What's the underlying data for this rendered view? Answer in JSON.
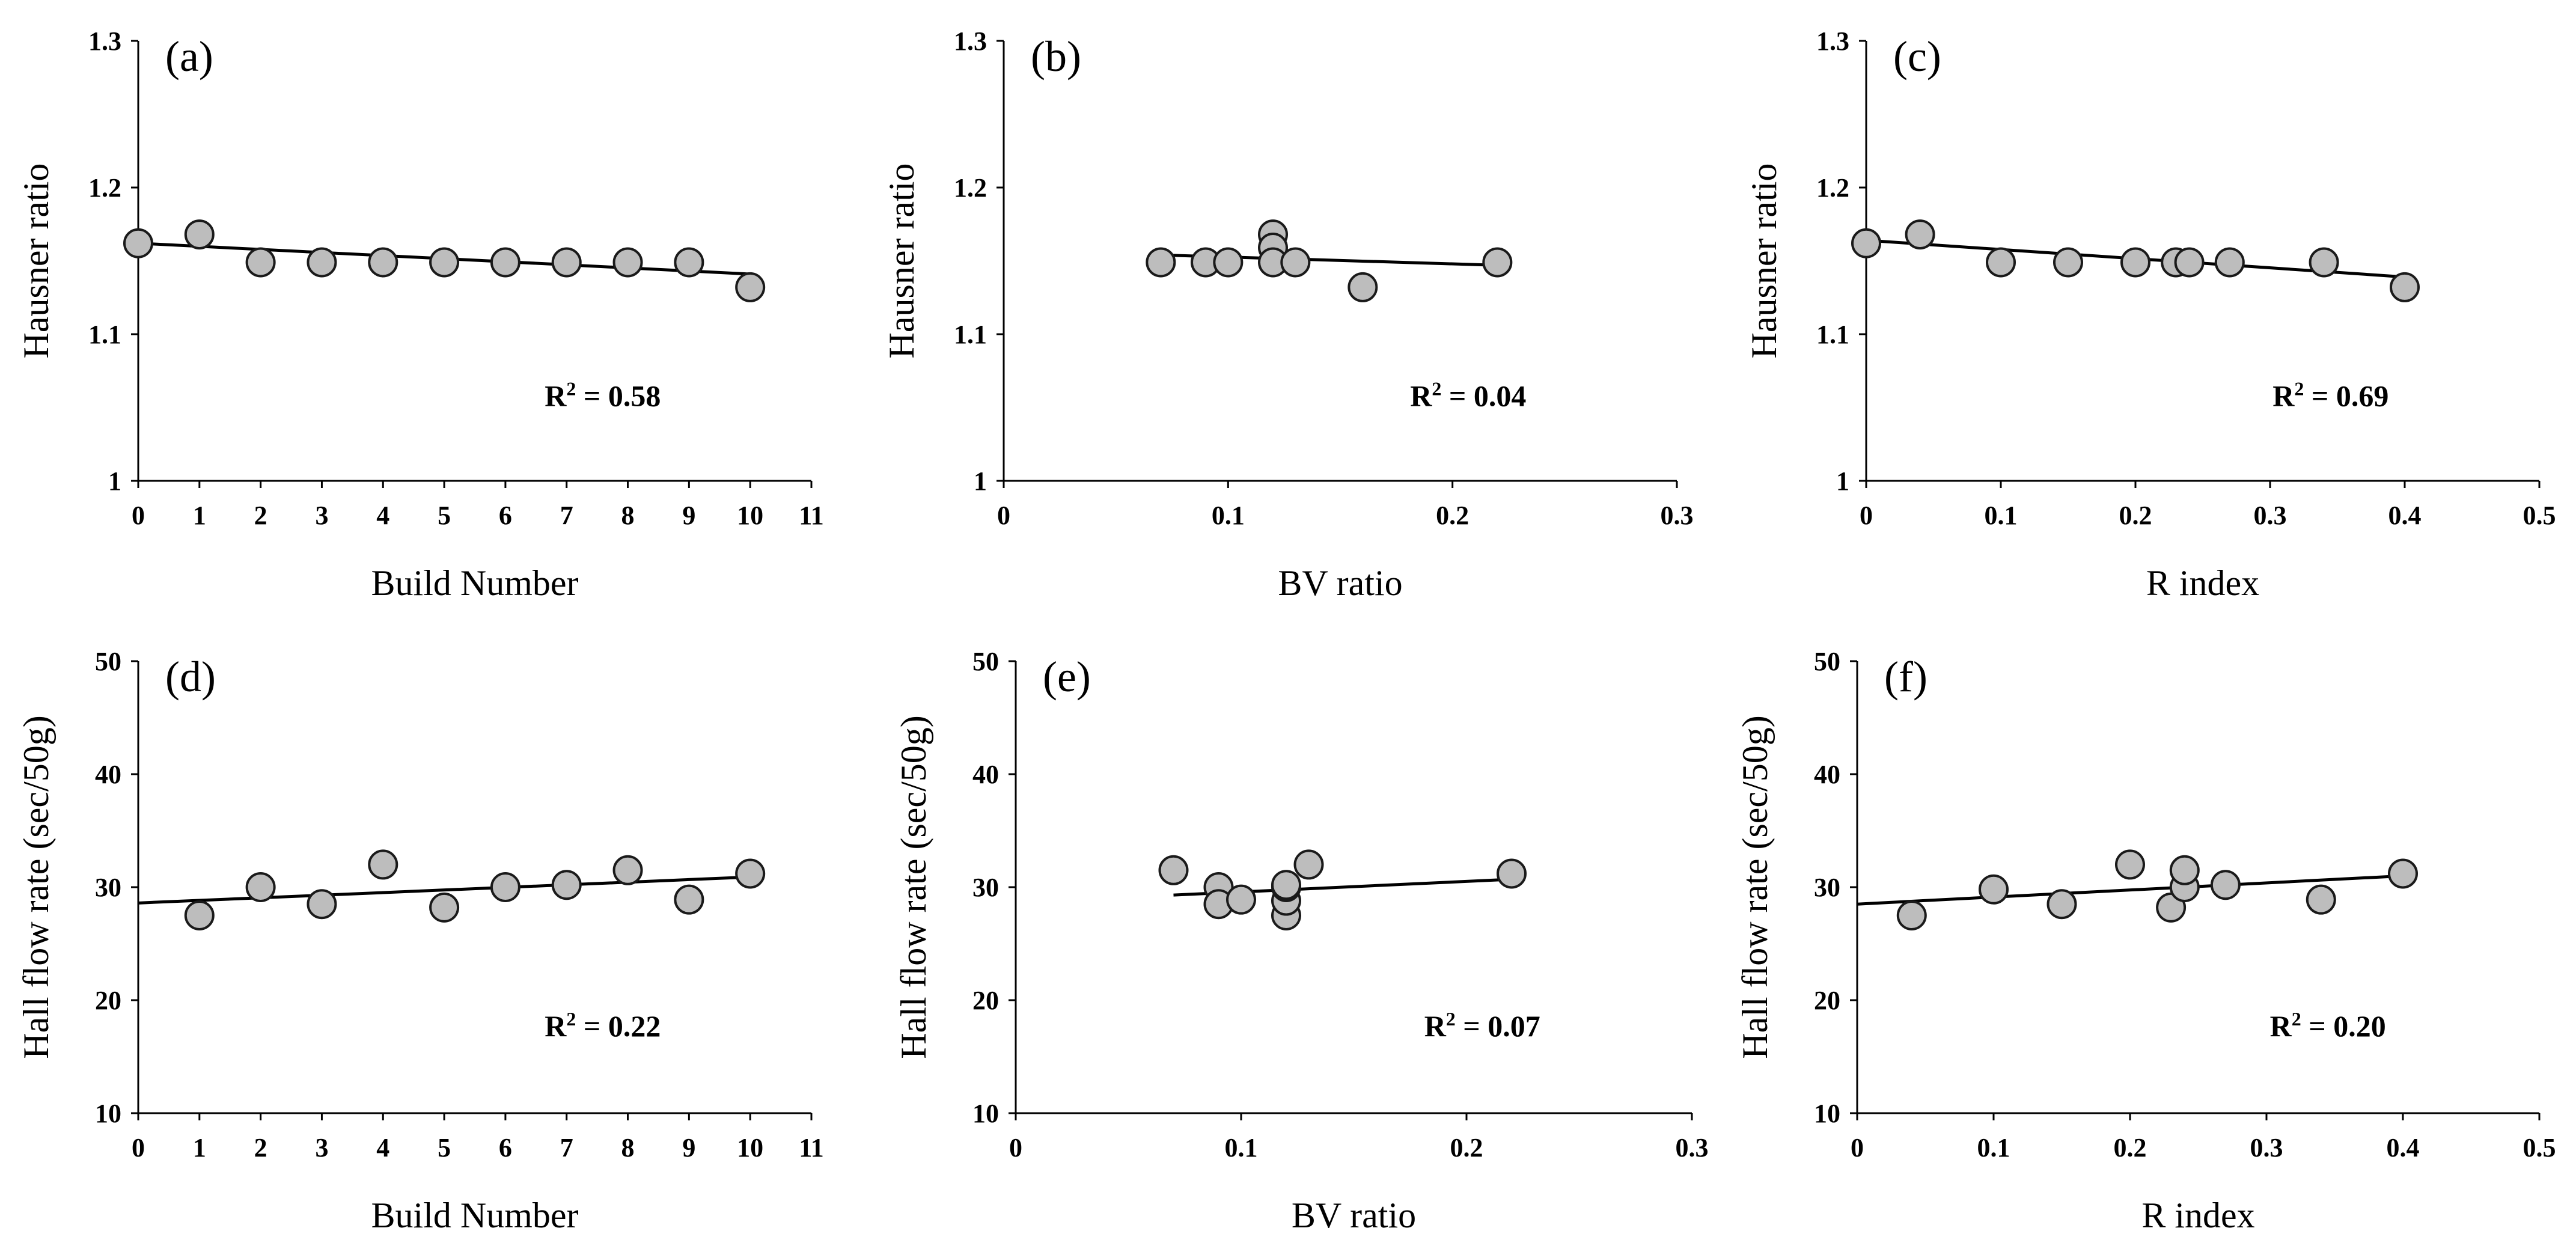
{
  "chart_data": [
    {
      "id": "a",
      "type": "scatter",
      "panel_label": "(a)",
      "xlabel": "Build Number",
      "ylabel": "Hausner ratio",
      "xlim": [
        0,
        11
      ],
      "ylim": [
        1,
        1.3
      ],
      "xticks": [
        0,
        1,
        2,
        3,
        4,
        5,
        6,
        7,
        8,
        9,
        10,
        11
      ],
      "yticks": [
        1,
        1.1,
        1.2,
        1.3
      ],
      "xtick_labels": [
        "0",
        "1",
        "2",
        "3",
        "4",
        "5",
        "6",
        "7",
        "8",
        "9",
        "10",
        "11"
      ],
      "ytick_labels": [
        "1",
        "1.1",
        "1.2",
        "1.3"
      ],
      "r2_prefix": "R",
      "r2_sup": "2",
      "r2_value": " = 0.58",
      "points": [
        {
          "x": 0,
          "y": 1.162
        },
        {
          "x": 1,
          "y": 1.168
        },
        {
          "x": 2,
          "y": 1.149
        },
        {
          "x": 3,
          "y": 1.149
        },
        {
          "x": 4,
          "y": 1.149
        },
        {
          "x": 5,
          "y": 1.149
        },
        {
          "x": 6,
          "y": 1.149
        },
        {
          "x": 7,
          "y": 1.149
        },
        {
          "x": 8,
          "y": 1.149
        },
        {
          "x": 9,
          "y": 1.149
        },
        {
          "x": 10,
          "y": 1.132
        }
      ],
      "trendline": {
        "x": [
          0,
          10
        ],
        "y": [
          1.162,
          1.141
        ]
      },
      "grid": false
    },
    {
      "id": "b",
      "type": "scatter",
      "panel_label": "(b)",
      "xlabel": "BV ratio",
      "ylabel": "Hausner ratio",
      "xlim": [
        0,
        0.3
      ],
      "ylim": [
        1,
        1.3
      ],
      "xticks": [
        0,
        0.1,
        0.2,
        0.3
      ],
      "yticks": [
        1,
        1.1,
        1.2,
        1.3
      ],
      "xtick_labels": [
        "0",
        "0.1",
        "0.2",
        "0.3"
      ],
      "ytick_labels": [
        "1",
        "1.1",
        "1.2",
        "1.3"
      ],
      "r2_prefix": "R",
      "r2_sup": "2",
      "r2_value": " = 0.04",
      "points": [
        {
          "x": 0.07,
          "y": 1.149
        },
        {
          "x": 0.09,
          "y": 1.149
        },
        {
          "x": 0.1,
          "y": 1.149
        },
        {
          "x": 0.12,
          "y": 1.168
        },
        {
          "x": 0.12,
          "y": 1.159
        },
        {
          "x": 0.12,
          "y": 1.149
        },
        {
          "x": 0.13,
          "y": 1.149
        },
        {
          "x": 0.16,
          "y": 1.132
        },
        {
          "x": 0.22,
          "y": 1.149
        }
      ],
      "trendline": {
        "x": [
          0.07,
          0.22
        ],
        "y": [
          1.154,
          1.147
        ]
      },
      "grid": false
    },
    {
      "id": "c",
      "type": "scatter",
      "panel_label": "(c)",
      "xlabel": "R index",
      "ylabel": "Hausner ratio",
      "xlim": [
        0,
        0.5
      ],
      "ylim": [
        1,
        1.3
      ],
      "xticks": [
        0,
        0.1,
        0.2,
        0.3,
        0.4,
        0.5
      ],
      "yticks": [
        1,
        1.1,
        1.2,
        1.3
      ],
      "xtick_labels": [
        "0",
        "0.1",
        "0.2",
        "0.3",
        "0.4",
        "0.5"
      ],
      "ytick_labels": [
        "1",
        "1.1",
        "1.2",
        "1.3"
      ],
      "r2_prefix": "R",
      "r2_sup": "2",
      "r2_value": " = 0.69",
      "points": [
        {
          "x": 0,
          "y": 1.162
        },
        {
          "x": 0.04,
          "y": 1.168
        },
        {
          "x": 0.1,
          "y": 1.149
        },
        {
          "x": 0.15,
          "y": 1.149
        },
        {
          "x": 0.2,
          "y": 1.149
        },
        {
          "x": 0.23,
          "y": 1.149
        },
        {
          "x": 0.24,
          "y": 1.149
        },
        {
          "x": 0.27,
          "y": 1.149
        },
        {
          "x": 0.34,
          "y": 1.149
        },
        {
          "x": 0.4,
          "y": 1.132
        }
      ],
      "trendline": {
        "x": [
          0,
          0.4
        ],
        "y": [
          1.164,
          1.139
        ]
      },
      "grid": false
    },
    {
      "id": "d",
      "type": "scatter",
      "panel_label": "(d)",
      "xlabel": "Build Number",
      "ylabel": "Hall flow rate (sec/50g)",
      "xlim": [
        0,
        11
      ],
      "ylim": [
        10,
        50
      ],
      "xticks": [
        0,
        1,
        2,
        3,
        4,
        5,
        6,
        7,
        8,
        9,
        10,
        11
      ],
      "yticks": [
        10,
        20,
        30,
        40,
        50
      ],
      "xtick_labels": [
        "0",
        "1",
        "2",
        "3",
        "4",
        "5",
        "6",
        "7",
        "8",
        "9",
        "10",
        "11"
      ],
      "ytick_labels": [
        "10",
        "20",
        "30",
        "40",
        "50"
      ],
      "r2_prefix": "R",
      "r2_sup": "2",
      "r2_value": " = 0.22",
      "points": [
        {
          "x": 1,
          "y": 27.5
        },
        {
          "x": 2,
          "y": 30.0
        },
        {
          "x": 3,
          "y": 28.5
        },
        {
          "x": 4,
          "y": 32.0
        },
        {
          "x": 5,
          "y": 28.2
        },
        {
          "x": 6,
          "y": 30.0
        },
        {
          "x": 7,
          "y": 30.2
        },
        {
          "x": 8,
          "y": 31.5
        },
        {
          "x": 9,
          "y": 28.9
        },
        {
          "x": 10,
          "y": 31.2
        }
      ],
      "trendline": {
        "x": [
          0,
          10
        ],
        "y": [
          28.6,
          30.9
        ]
      },
      "grid": false
    },
    {
      "id": "e",
      "type": "scatter",
      "panel_label": "(e)",
      "xlabel": "BV ratio",
      "ylabel": "Hall flow rate (sec/50g)",
      "xlim": [
        0,
        0.3
      ],
      "ylim": [
        10,
        50
      ],
      "xticks": [
        0,
        0.1,
        0.2,
        0.3
      ],
      "yticks": [
        10,
        20,
        30,
        40,
        50
      ],
      "xtick_labels": [
        "0",
        "0.1",
        "0.2",
        "0.3"
      ],
      "ytick_labels": [
        "10",
        "20",
        "30",
        "40",
        "50"
      ],
      "r2_prefix": "R",
      "r2_sup": "2",
      "r2_value": " = 0.07",
      "points": [
        {
          "x": 0.07,
          "y": 31.5
        },
        {
          "x": 0.09,
          "y": 30.0
        },
        {
          "x": 0.09,
          "y": 28.5
        },
        {
          "x": 0.1,
          "y": 28.9
        },
        {
          "x": 0.12,
          "y": 27.5
        },
        {
          "x": 0.12,
          "y": 28.8
        },
        {
          "x": 0.12,
          "y": 30.0
        },
        {
          "x": 0.12,
          "y": 30.2
        },
        {
          "x": 0.13,
          "y": 32.0
        },
        {
          "x": 0.22,
          "y": 31.2
        }
      ],
      "trendline": {
        "x": [
          0.07,
          0.22
        ],
        "y": [
          29.3,
          30.7
        ]
      },
      "grid": false
    },
    {
      "id": "f",
      "type": "scatter",
      "panel_label": "(f)",
      "xlabel": "R index",
      "ylabel": "Hall flow rate (sec/50g)",
      "xlim": [
        0,
        0.5
      ],
      "ylim": [
        10,
        50
      ],
      "xticks": [
        0,
        0.1,
        0.2,
        0.3,
        0.4,
        0.5
      ],
      "yticks": [
        10,
        20,
        30,
        40,
        50
      ],
      "xtick_labels": [
        "0",
        "0.1",
        "0.2",
        "0.3",
        "0.4",
        "0.5"
      ],
      "ytick_labels": [
        "10",
        "20",
        "30",
        "40",
        "50"
      ],
      "r2_prefix": "R",
      "r2_sup": "2",
      "r2_value": " = 0.20",
      "points": [
        {
          "x": 0.04,
          "y": 27.5
        },
        {
          "x": 0.1,
          "y": 29.8
        },
        {
          "x": 0.15,
          "y": 28.5
        },
        {
          "x": 0.2,
          "y": 32.0
        },
        {
          "x": 0.23,
          "y": 28.2
        },
        {
          "x": 0.24,
          "y": 30.0
        },
        {
          "x": 0.24,
          "y": 31.5
        },
        {
          "x": 0.27,
          "y": 30.2
        },
        {
          "x": 0.34,
          "y": 28.9
        },
        {
          "x": 0.4,
          "y": 31.2
        }
      ],
      "trendline": {
        "x": [
          0,
          0.4
        ],
        "y": [
          28.5,
          31.0
        ]
      },
      "grid": false
    }
  ],
  "style": {
    "marker_fill": "#bdbdbd",
    "marker_stroke": "#1a1a1a",
    "line_color": "#000000",
    "text_color": "#000000",
    "background": "#ffffff"
  }
}
